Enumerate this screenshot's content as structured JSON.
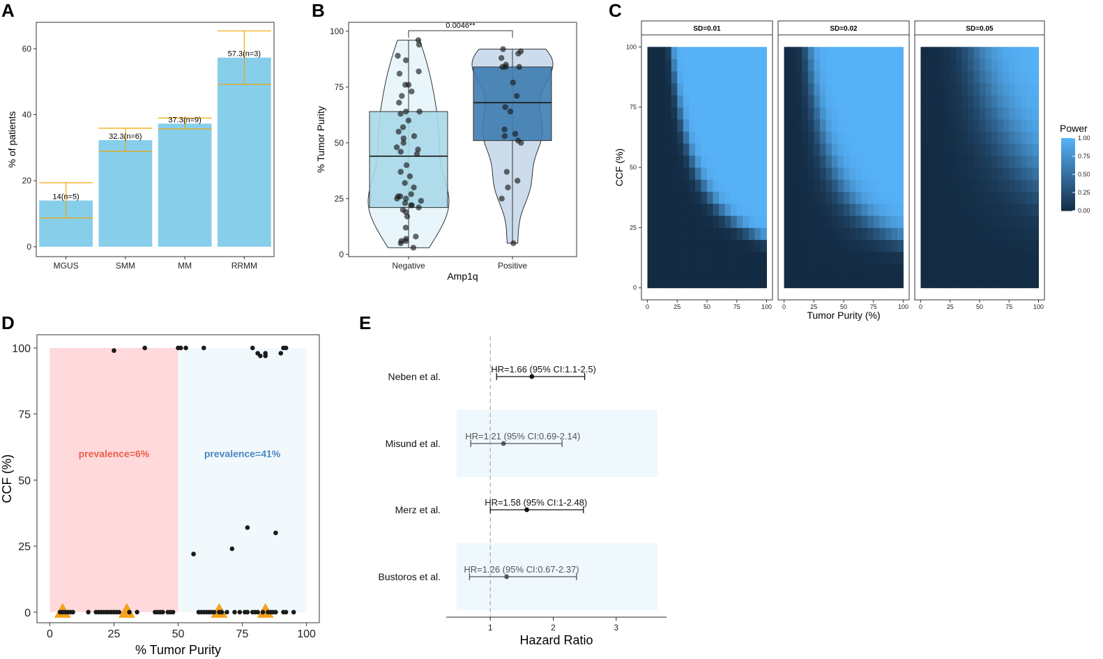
{
  "panels": {
    "A": {
      "letter": "A",
      "chart_data": {
        "type": "bar",
        "categories": [
          "MGUS",
          "SMM",
          "MM",
          "RRMM"
        ],
        "values": [
          14,
          32.3,
          37.3,
          57.3
        ],
        "err_low": [
          8.7,
          28.9,
          35.7,
          49.2
        ],
        "err_high": [
          19.4,
          35.9,
          39.0,
          65.4
        ],
        "labels": [
          "14(n=5)",
          "32.3(n=6)",
          "37.3(n=9)",
          "57.3(n=3)"
        ],
        "ylabel": "% of patients",
        "xlabel": "",
        "ylim": [
          -3,
          68
        ],
        "yticks": [
          "0",
          "20",
          "40",
          "60"
        ],
        "bar_color": "#87ceeb",
        "error_color": "#f0a500"
      }
    },
    "B": {
      "letter": "B",
      "chart_data": {
        "type": "violin-box",
        "categories": [
          "Negative",
          "Positive"
        ],
        "xlabel": "Amp1q",
        "ylabel": "% Tumor Purity",
        "ylim": [
          -1,
          104
        ],
        "yticks": [
          "0",
          "25",
          "50",
          "75",
          "100"
        ],
        "p_value": "0.0046**",
        "groups": [
          {
            "name": "Negative",
            "box": {
              "q1": 21,
              "median": 44,
              "q3": 64,
              "min": 3,
              "max": 96
            },
            "fill": "#a8d8e8",
            "violin_fill": "#e8f6fb",
            "points": [
              96,
              94,
              89,
              87,
              82,
              81,
              76,
              76,
              73,
              71,
              68,
              64,
              64,
              63,
              60,
              57,
              55,
              53,
              52,
              50,
              48,
              47,
              46,
              45,
              40,
              37,
              35,
              32,
              30,
              27,
              26,
              26,
              25,
              25,
              24,
              23,
              22,
              22,
              21,
              20,
              19,
              17,
              12,
              8,
              7,
              6,
              6,
              5,
              3
            ]
          },
          {
            "name": "Positive",
            "box": {
              "q1": 51,
              "median": 68,
              "q3": 84,
              "min": 5,
              "max": 92
            },
            "fill": "#3e7cb1",
            "violin_fill": "#ccdcec",
            "points": [
              92,
              91,
              90,
              88,
              85,
              84,
              84,
              84,
              77,
              71,
              66,
              64,
              56,
              54,
              53,
              51,
              50,
              37,
              33,
              30,
              25,
              5
            ]
          }
        ]
      }
    },
    "C": {
      "letter": "C",
      "chart_data": {
        "type": "heatmap",
        "facets": [
          "SD=0.01",
          "SD=0.02",
          "SD=0.05"
        ],
        "sharpness": [
          0.015,
          0.03,
          0.09
        ],
        "xlabel": "Tumor Purity (%)",
        "ylabel": "CCF (%)",
        "xticks": [
          "0",
          "25",
          "50",
          "75",
          "100"
        ],
        "yticks": [
          "0",
          "25",
          "50",
          "75",
          "100"
        ],
        "grid": "20x20",
        "legend_title": "Power",
        "legend_ticks": [
          "1.00",
          "0.75",
          "0.50",
          "0.25",
          "0.00"
        ],
        "color_low": "#132b43",
        "color_high": "#56b1f7"
      }
    },
    "D": {
      "letter": "D",
      "chart_data": {
        "type": "scatter",
        "xlabel": "% Tumor Purity",
        "ylabel": "CCF (%)",
        "xlim": [
          -5,
          105
        ],
        "ylim": [
          -4,
          105
        ],
        "xticks": [
          "0",
          "25",
          "50",
          "75",
          "100"
        ],
        "yticks": [
          "0",
          "25",
          "50",
          "75",
          "100"
        ],
        "regions": [
          {
            "x0": 0,
            "x1": 50,
            "label": "prevalence=6%",
            "fill": "#ffd9db",
            "text_color": "#e8604c"
          },
          {
            "x0": 50,
            "x1": 100,
            "label": "prevalence=41%",
            "fill": "#f1f9fd",
            "text_color": "#4a86c0"
          }
        ],
        "points": [
          [
            25,
            99
          ],
          [
            37,
            100
          ],
          [
            50,
            100
          ],
          [
            51,
            100
          ],
          [
            53,
            100
          ],
          [
            60,
            100
          ],
          [
            79,
            100
          ],
          [
            81,
            98
          ],
          [
            82,
            97
          ],
          [
            84,
            97
          ],
          [
            84,
            98
          ],
          [
            90,
            98
          ],
          [
            91,
            100
          ],
          [
            92,
            100
          ],
          [
            77,
            32
          ],
          [
            88,
            30
          ],
          [
            71,
            24
          ],
          [
            56,
            22
          ],
          [
            4,
            0
          ],
          [
            5,
            0
          ],
          [
            6,
            0
          ],
          [
            7,
            0
          ],
          [
            8,
            0
          ],
          [
            9,
            0
          ],
          [
            15,
            0
          ],
          [
            18,
            0
          ],
          [
            19,
            0
          ],
          [
            20,
            0
          ],
          [
            21,
            0
          ],
          [
            22,
            0
          ],
          [
            23,
            0
          ],
          [
            24,
            0
          ],
          [
            25,
            0
          ],
          [
            26,
            0
          ],
          [
            27,
            0
          ],
          [
            31,
            0
          ],
          [
            34,
            0
          ],
          [
            41,
            0
          ],
          [
            42,
            0
          ],
          [
            43,
            0
          ],
          [
            44,
            0
          ],
          [
            46,
            0
          ],
          [
            47,
            0
          ],
          [
            48,
            0
          ],
          [
            58,
            0
          ],
          [
            59,
            0
          ],
          [
            60,
            0
          ],
          [
            61,
            0
          ],
          [
            62,
            0
          ],
          [
            63,
            0
          ],
          [
            64,
            0
          ],
          [
            66,
            0
          ],
          [
            67,
            0
          ],
          [
            69,
            0
          ],
          [
            72,
            0
          ],
          [
            74,
            0
          ],
          [
            76,
            0
          ],
          [
            77,
            0
          ],
          [
            79,
            0
          ],
          [
            80,
            0
          ],
          [
            81,
            0
          ],
          [
            83,
            0
          ],
          [
            85,
            0
          ],
          [
            86,
            0
          ],
          [
            87,
            0
          ],
          [
            88,
            0
          ],
          [
            91,
            0
          ],
          [
            92,
            0
          ],
          [
            95,
            0
          ]
        ],
        "triangles": [
          [
            5,
            0
          ],
          [
            30,
            0
          ],
          [
            66,
            0
          ],
          [
            84,
            0
          ]
        ],
        "triangle_color": "#f5a21e"
      }
    },
    "E": {
      "letter": "E",
      "chart_data": {
        "type": "forest",
        "xlabel": "Hazard Ratio",
        "xlim": [
          0.3,
          3.8
        ],
        "xticks": [
          1,
          2,
          3
        ],
        "reference": 1,
        "studies": [
          {
            "name": "Neben et al.",
            "hr": 1.66,
            "lo": 1.1,
            "hi": 2.5,
            "label": "HR=1.66 (95% CI:1.1-2.5)",
            "shaded": false
          },
          {
            "name": "Misund et al.",
            "hr": 1.21,
            "lo": 0.69,
            "hi": 2.14,
            "label": "HR=1.21 (95% CI:0.69-2.14)",
            "shaded": true
          },
          {
            "name": "Merz et al.",
            "hr": 1.58,
            "lo": 1.0,
            "hi": 2.48,
            "label": "HR=1.58 (95% CI:1-2.48)",
            "shaded": false
          },
          {
            "name": "Bustoros et al.",
            "hr": 1.26,
            "lo": 0.67,
            "hi": 2.37,
            "label": "HR=1.26 (95% CI:0.67-2.37)",
            "shaded": true
          }
        ],
        "shade_color": "#eef8fd"
      }
    }
  }
}
